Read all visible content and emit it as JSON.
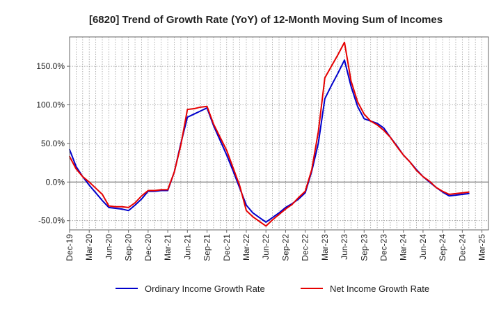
{
  "chart_data": {
    "type": "line",
    "title": "[6820]  Trend of Growth Rate (YoY) of 12-Month Moving Sum of Incomes",
    "x": [
      "Dec-19",
      "Jan-20",
      "Feb-20",
      "Mar-20",
      "Apr-20",
      "May-20",
      "Jun-20",
      "Jul-20",
      "Aug-20",
      "Sep-20",
      "Oct-20",
      "Nov-20",
      "Dec-20",
      "Jan-21",
      "Feb-21",
      "Mar-21",
      "Apr-21",
      "May-21",
      "Jun-21",
      "Jul-21",
      "Aug-21",
      "Sep-21",
      "Oct-21",
      "Nov-21",
      "Dec-21",
      "Jan-22",
      "Feb-22",
      "Mar-22",
      "Apr-22",
      "May-22",
      "Jun-22",
      "Jul-22",
      "Aug-22",
      "Sep-22",
      "Oct-22",
      "Nov-22",
      "Dec-22",
      "Jan-23",
      "Feb-23",
      "Mar-23",
      "Apr-23",
      "May-23",
      "Jun-23",
      "Jul-23",
      "Aug-23",
      "Sep-23",
      "Oct-23",
      "Nov-23",
      "Dec-23",
      "Jan-24",
      "Feb-24",
      "Mar-24",
      "Apr-24",
      "May-24",
      "Jun-24",
      "Jul-24",
      "Aug-24",
      "Sep-24",
      "Oct-24",
      "Nov-24",
      "Dec-24",
      "Jan-25",
      "Feb-25",
      "Mar-25"
    ],
    "x_tick_labels": [
      "Dec-19",
      "Mar-20",
      "Jun-20",
      "Sep-20",
      "Dec-20",
      "Mar-21",
      "Jun-21",
      "Sep-21",
      "Dec-21",
      "Mar-22",
      "Jun-22",
      "Sep-22",
      "Dec-22",
      "Mar-23",
      "Jun-23",
      "Sep-23",
      "Dec-23",
      "Mar-24",
      "Jun-24",
      "Sep-24",
      "Dec-24",
      "Mar-25"
    ],
    "y_ticks": [
      -50,
      0,
      50,
      100,
      150
    ],
    "y_tick_labels": [
      "-50.0%",
      "0.0%",
      "50.0%",
      "100.0%",
      "150.0%"
    ],
    "ylim": [
      -62,
      188
    ],
    "grid": true,
    "legend_position": "bottom",
    "series": [
      {
        "name": "Ordinary Income Growth Rate",
        "color": "#0000cc",
        "values": [
          42,
          20,
          7,
          -4,
          -14,
          -24,
          -33,
          -34,
          -35,
          -37,
          -30,
          -22,
          -12,
          -12,
          -11,
          -11,
          13,
          50,
          84,
          88,
          92,
          96,
          73,
          54,
          35,
          14,
          -8,
          -30,
          -40,
          -46,
          -52,
          -46,
          -40,
          -33,
          -28,
          -22,
          -14,
          14,
          50,
          108,
          125,
          141,
          158,
          124,
          98,
          82,
          79,
          76,
          70,
          58,
          47,
          35,
          26,
          16,
          7,
          0,
          -7,
          -13,
          -18,
          -17,
          -16,
          -15,
          null,
          null
        ]
      },
      {
        "name": "Net Income Growth Rate",
        "color": "#e60000",
        "values": [
          33,
          17,
          7,
          0,
          -8,
          -16,
          -31,
          -32,
          -32,
          -33,
          -27,
          -18,
          -11,
          -11,
          -10,
          -10,
          13,
          48,
          94,
          95,
          97,
          98,
          75,
          58,
          41,
          18,
          -5,
          -37,
          -45,
          -51,
          -57,
          -49,
          -42,
          -35,
          -29,
          -20,
          -12,
          16,
          65,
          135,
          150,
          165,
          181,
          131,
          104,
          88,
          79,
          74,
          67,
          58,
          46,
          35,
          26,
          15,
          7,
          1,
          -7,
          -12,
          -16,
          -15,
          -14,
          -13,
          null,
          null
        ]
      }
    ]
  }
}
